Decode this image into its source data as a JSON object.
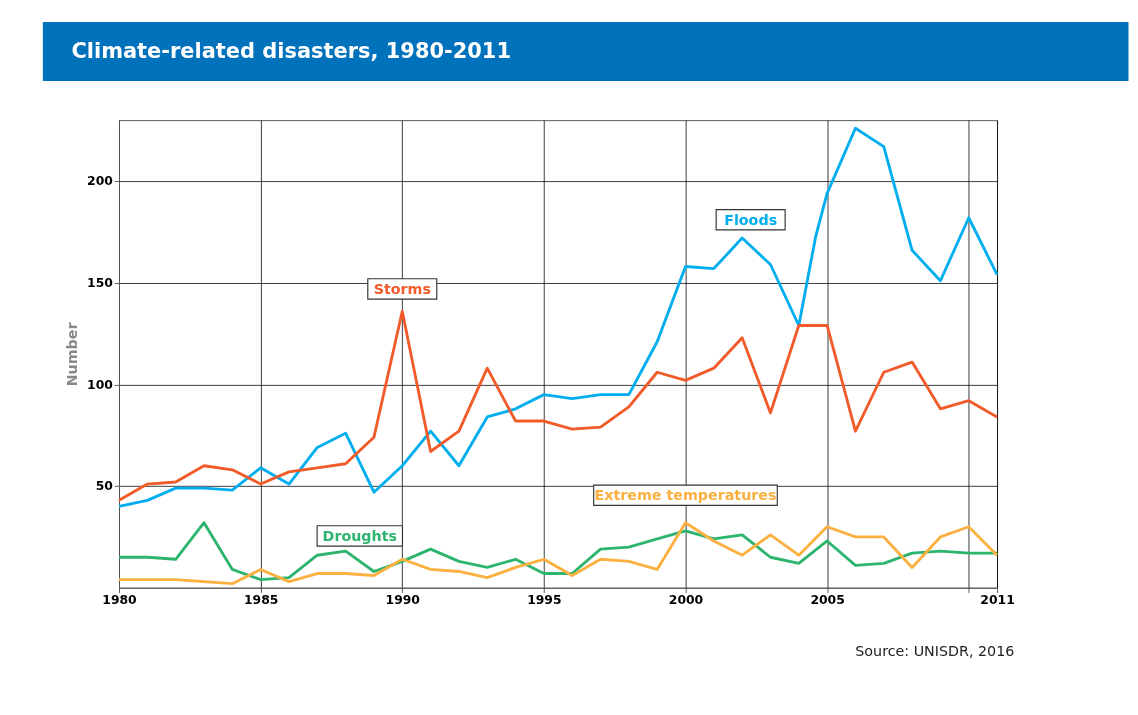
{
  "chart_data": {
    "type": "line",
    "title": "Climate-related disasters, 1980-2011",
    "ylabel": "Number",
    "x": [
      1980,
      1981,
      1982,
      1983,
      1984,
      1985,
      1986,
      1987,
      1988,
      1989,
      1990,
      1991,
      1992,
      1993,
      1994,
      1995,
      1996,
      1997,
      1998,
      1999,
      2000,
      2001,
      2002,
      2003,
      2004,
      2005,
      2006,
      2007,
      2008,
      2009,
      2010,
      2011
    ],
    "series": [
      {
        "name": "Floods",
        "color": "#00aeef",
        "x": [
          1980,
          1981,
          1982,
          1983,
          1984,
          1985,
          1986,
          1987,
          1988,
          1989,
          1990,
          1991,
          1992,
          1993,
          1994,
          1995,
          1996,
          1997,
          1998,
          1999,
          2000,
          2001,
          2002,
          2003,
          2004,
          2004.6,
          2005,
          2006,
          2007,
          2008,
          2009,
          2010,
          2011
        ],
        "values": [
          40,
          43,
          49,
          49,
          48,
          59,
          51,
          69,
          76,
          47,
          60,
          77,
          60,
          84,
          88,
          95,
          93,
          95,
          95,
          121,
          158,
          157,
          172,
          159,
          129,
          173,
          194,
          226,
          217,
          166,
          151,
          182,
          154
        ]
      },
      {
        "name": "Storms",
        "color": "#f15a29",
        "values": [
          43,
          51,
          52,
          60,
          58,
          51,
          57,
          59,
          61,
          74,
          136,
          67,
          77,
          108,
          82,
          82,
          78,
          79,
          89,
          106,
          102,
          108,
          123,
          86,
          129,
          129,
          77,
          106,
          111,
          88,
          92,
          84
        ]
      },
      {
        "name": "Droughts",
        "color": "#2db46e",
        "values": [
          15,
          15,
          14,
          32,
          9,
          4,
          5,
          16,
          18,
          8,
          13,
          19,
          13,
          10,
          14,
          7,
          7,
          19,
          20,
          24,
          28,
          24,
          26,
          15,
          12,
          23,
          11,
          12,
          17,
          18,
          17,
          17
        ]
      },
      {
        "name": "Extreme temperatures",
        "color": "#fbb040",
        "values": [
          4,
          4,
          4,
          3,
          2,
          9,
          3,
          7,
          7,
          6,
          14,
          9,
          8,
          5,
          10,
          14,
          6,
          14,
          13,
          9,
          32,
          23,
          16,
          26,
          16,
          30,
          25,
          25,
          10,
          25,
          30,
          16
        ]
      }
    ],
    "xlim": [
      1980,
      2011
    ],
    "xticks": [
      1980,
      1985,
      1990,
      1995,
      2000,
      2005,
      {
        "value": 2010,
        "label": null
      },
      2011
    ],
    "ylim": [
      0,
      230
    ],
    "yticks": [
      50,
      100,
      150,
      200
    ],
    "grid": true,
    "legend": false,
    "marker": "none",
    "line_style": "solid",
    "annotations": [
      "Source: UNISDR, 2016"
    ]
  }
}
